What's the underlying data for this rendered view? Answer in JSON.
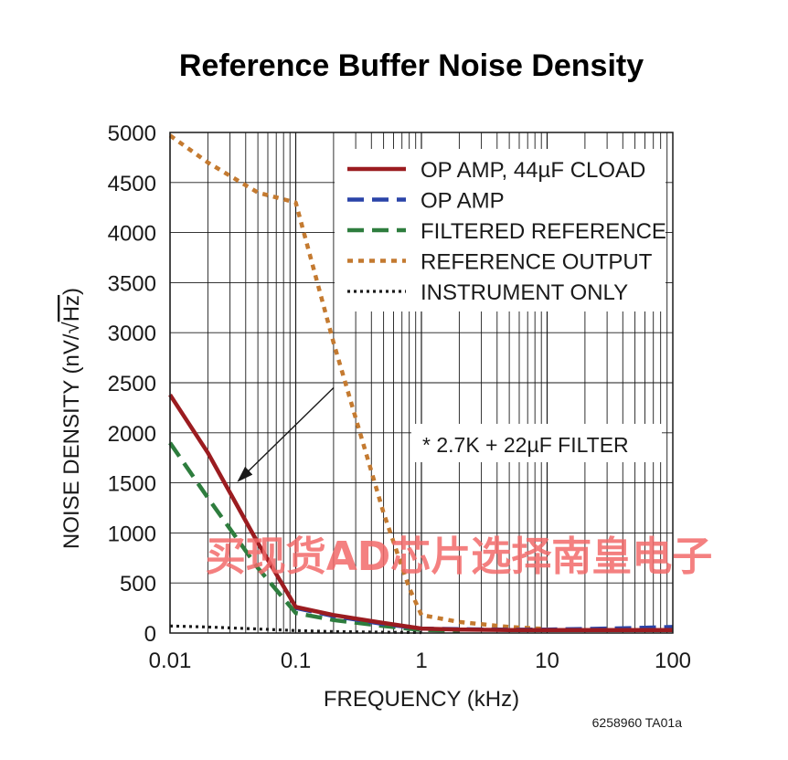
{
  "chart_data": {
    "type": "line",
    "title": "Reference Buffer Noise Density",
    "xlabel": "FREQUENCY (kHz)",
    "ylabel_main": "NOISE DENSITY (nV/",
    "ylabel_sqrt": "√",
    "ylabel_hz": "Hz",
    "ylabel_close": ")",
    "x_scale": "log",
    "xlim": [
      0.01,
      100
    ],
    "ylim": [
      0,
      5000
    ],
    "x_ticks": [
      0.01,
      0.1,
      1,
      10,
      100
    ],
    "x_tick_labels": [
      "0.01",
      "0.1",
      "1",
      "10",
      "100"
    ],
    "y_ticks": [
      0,
      500,
      1000,
      1500,
      2000,
      2500,
      3000,
      3500,
      4000,
      4500,
      5000
    ],
    "y_tick_labels": [
      "0",
      "500",
      "1000",
      "1500",
      "2000",
      "2500",
      "3000",
      "3500",
      "4000",
      "4500",
      "5000"
    ],
    "grid": true,
    "legend_position": "top-right",
    "series": [
      {
        "name": "OP AMP, 44µF CLOAD",
        "color": "#9b1c20",
        "style": "solid",
        "x": [
          0.01,
          0.02,
          0.05,
          0.1,
          0.2,
          0.5,
          1,
          2,
          5,
          10,
          20,
          50,
          100
        ],
        "y": [
          2380,
          1800,
          900,
          260,
          180,
          100,
          45,
          35,
          30,
          30,
          30,
          30,
          30
        ]
      },
      {
        "name": "OP AMP",
        "color": "#2a44a8",
        "style": "dash",
        "x": [
          0.1,
          0.2,
          0.5,
          1,
          2,
          5,
          10,
          20,
          50,
          100
        ],
        "y": [
          250,
          170,
          90,
          45,
          38,
          33,
          35,
          40,
          50,
          60
        ]
      },
      {
        "name": "FILTERED REFERENCE",
        "color": "#2e7d3e",
        "style": "dash",
        "x": [
          0.01,
          0.02,
          0.05,
          0.1,
          0.2,
          0.5,
          1,
          2
        ],
        "y": [
          1900,
          1350,
          650,
          200,
          130,
          70,
          30,
          25
        ]
      },
      {
        "name": "REFERENCE OUTPUT",
        "color": "#c47a30",
        "style": "dot",
        "x": [
          0.01,
          0.02,
          0.05,
          0.1,
          0.2,
          0.5,
          0.8,
          1,
          2,
          5,
          10
        ],
        "y": [
          4970,
          4700,
          4400,
          4300,
          2900,
          1200,
          450,
          180,
          110,
          60,
          40
        ]
      },
      {
        "name": "INSTRUMENT ONLY",
        "color": "#1a1a1a",
        "style": "fine-dot",
        "x": [
          0.01,
          0.02,
          0.05,
          0.1,
          0.2,
          0.5,
          1
        ],
        "y": [
          70,
          60,
          40,
          25,
          15,
          8,
          5
        ]
      }
    ],
    "annotation": {
      "text": "* 2.7K + 22µF FILTER",
      "arrow_from": [
        0.2,
        2450
      ],
      "arrow_to": [
        0.035,
        1520
      ]
    },
    "part_number": "6258960 TA01a"
  },
  "watermark": "买现货AD芯片选择南皇电子"
}
